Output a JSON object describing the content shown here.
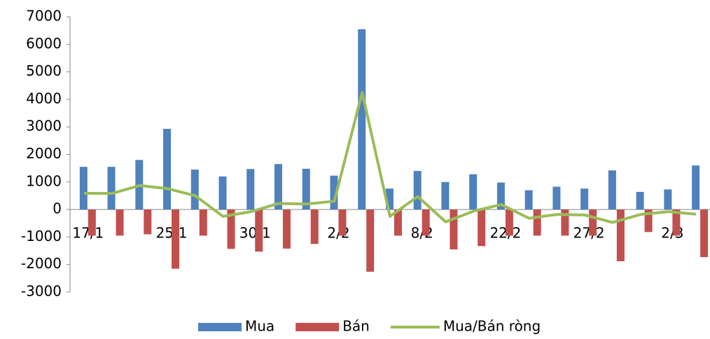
{
  "chart_data": {
    "type": "bar",
    "categories": [
      "17/1",
      null,
      null,
      "25/1",
      null,
      null,
      "30/1",
      null,
      null,
      "2/2",
      null,
      null,
      "8/2",
      null,
      null,
      "22/2",
      null,
      null,
      "27/2",
      null,
      null,
      "2/3",
      null
    ],
    "series": [
      {
        "name": "Mua",
        "color": "#4f81bd",
        "values": [
          1550,
          1550,
          1800,
          2930,
          1450,
          1200,
          1470,
          1650,
          1480,
          1230,
          6550,
          760,
          1400,
          1000,
          1280,
          980,
          700,
          830,
          760,
          1420,
          640,
          730,
          1600
        ]
      },
      {
        "name": "Bán",
        "color": "#c0504d",
        "values": [
          -950,
          -950,
          -900,
          -2150,
          -950,
          -1430,
          -1530,
          -1420,
          -1250,
          -950,
          -2260,
          -950,
          -950,
          -1450,
          -1330,
          -950,
          -950,
          -950,
          -950,
          -1880,
          -820,
          -950,
          -1730
        ]
      },
      {
        "name": "Mua/Bán ròng",
        "color": "#9bbb59",
        "type": "line",
        "values": [
          590,
          580,
          870,
          760,
          500,
          -250,
          -80,
          220,
          200,
          300,
          4250,
          -250,
          470,
          -450,
          -60,
          180,
          -320,
          -180,
          -200,
          -470,
          -180,
          -80,
          -170
        ]
      }
    ],
    "ylim": [
      -3000,
      7000
    ],
    "yticks": [
      -3000,
      -2000,
      -1000,
      0,
      1000,
      2000,
      3000,
      4000,
      5000,
      6000,
      7000
    ],
    "grid": false,
    "legend": "bottom"
  }
}
